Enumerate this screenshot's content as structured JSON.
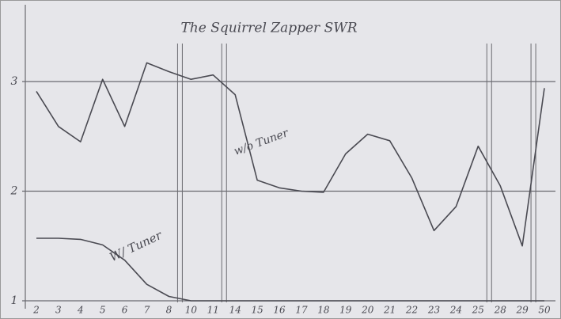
{
  "chart_data": {
    "type": "line",
    "title": "The Squirrel Zapper SWR",
    "categories": [
      "2",
      "3",
      "4",
      "5",
      "6",
      "7",
      "8",
      "10",
      "11",
      "14",
      "15",
      "16",
      "17",
      "18",
      "19",
      "20",
      "21",
      "22",
      "23",
      "24",
      "25",
      "28",
      "29",
      "50"
    ],
    "series": [
      {
        "name": "w/o Tuner",
        "color": "#4a4a52",
        "values": [
          2.91,
          2.59,
          2.45,
          3.02,
          2.59,
          3.17,
          3.09,
          3.02,
          3.06,
          2.88,
          2.1,
          2.03,
          2.0,
          1.99,
          2.34,
          2.52,
          2.46,
          2.12,
          1.64,
          1.86,
          2.41,
          2.05,
          1.5,
          2.94
        ]
      },
      {
        "name": "W/ Tuner",
        "color": "#4a4a52",
        "values": [
          1.57,
          1.57,
          1.56,
          1.51,
          1.37,
          1.15,
          1.04,
          1.0,
          1.0,
          1.0,
          1.0,
          1.0,
          1.0,
          1.0,
          1.0,
          1.0,
          1.0,
          1.0,
          1.0,
          1.0,
          1.0,
          1.0,
          1.0,
          1.0
        ]
      }
    ],
    "ylim": [
      1,
      3.7
    ],
    "yticks": [
      1,
      2,
      3
    ],
    "grid": true
  }
}
